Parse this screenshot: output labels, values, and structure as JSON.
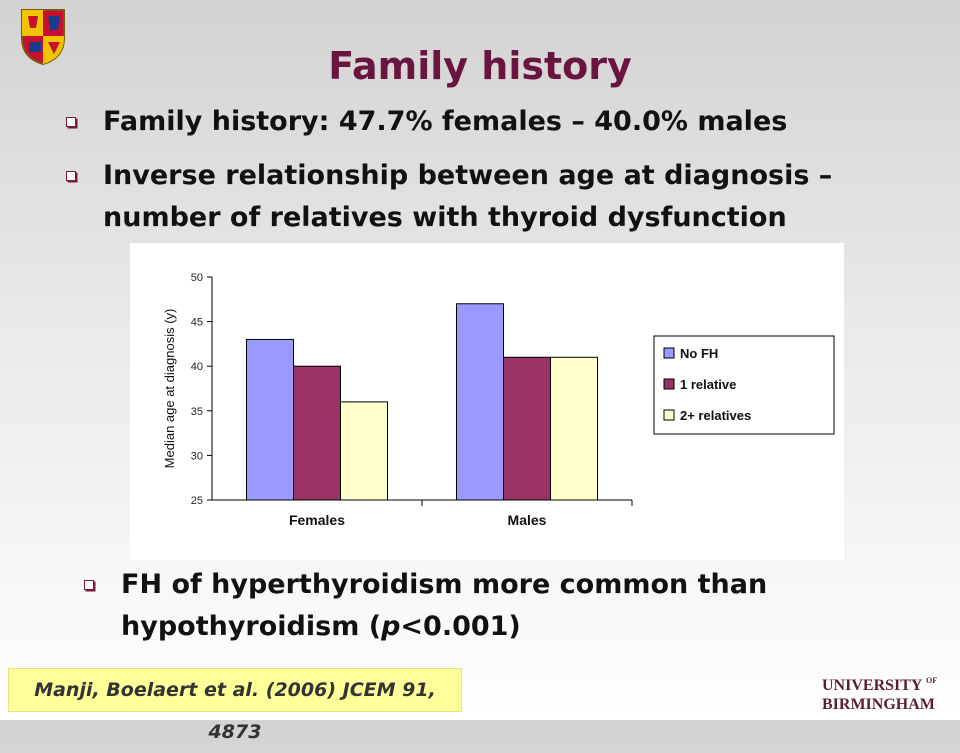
{
  "title": "Family history",
  "bullets": [
    "Family history: 47.7% females – 40.0% males",
    "Inverse relationship between age at diagnosis – number of relatives with thyroid dysfunction",
    "FH of hyperthyroidism more common than hypothyroidism (p<0.001)"
  ],
  "bullet3": {
    "before": "FH of hyperthyroidism more common than hypothyroidism (",
    "italic": "p",
    "after": "<0.001)"
  },
  "citation": "Manji, Boelaert et al. (2006) JCEM 91, 4873",
  "logo": {
    "line1_a": "UNIVERSITY",
    "line1_b": "OF",
    "line2": "BIRMINGHAM"
  },
  "icons": {
    "crest": "university-crest-icon",
    "bullet": "square-bullet-icon"
  },
  "colors": {
    "title": "#6a1440",
    "citation_bg": "#ffff99",
    "bullet": "#7a1a3a"
  },
  "chart_data": {
    "type": "bar",
    "categories": [
      "Females",
      "Males"
    ],
    "series": [
      {
        "name": "No FH",
        "values": [
          43,
          47
        ],
        "color": "#9999ff"
      },
      {
        "name": "1 relative",
        "values": [
          40,
          41
        ],
        "color": "#993366"
      },
      {
        "name": "2+ relatives",
        "values": [
          36,
          41
        ],
        "color": "#ffffcc"
      }
    ],
    "ylabel": "Median age at diagnosis (y)",
    "ylim": [
      25,
      50
    ],
    "yticks": [
      25,
      30,
      35,
      40,
      45,
      50
    ],
    "legend_position": "right",
    "grid": false
  }
}
